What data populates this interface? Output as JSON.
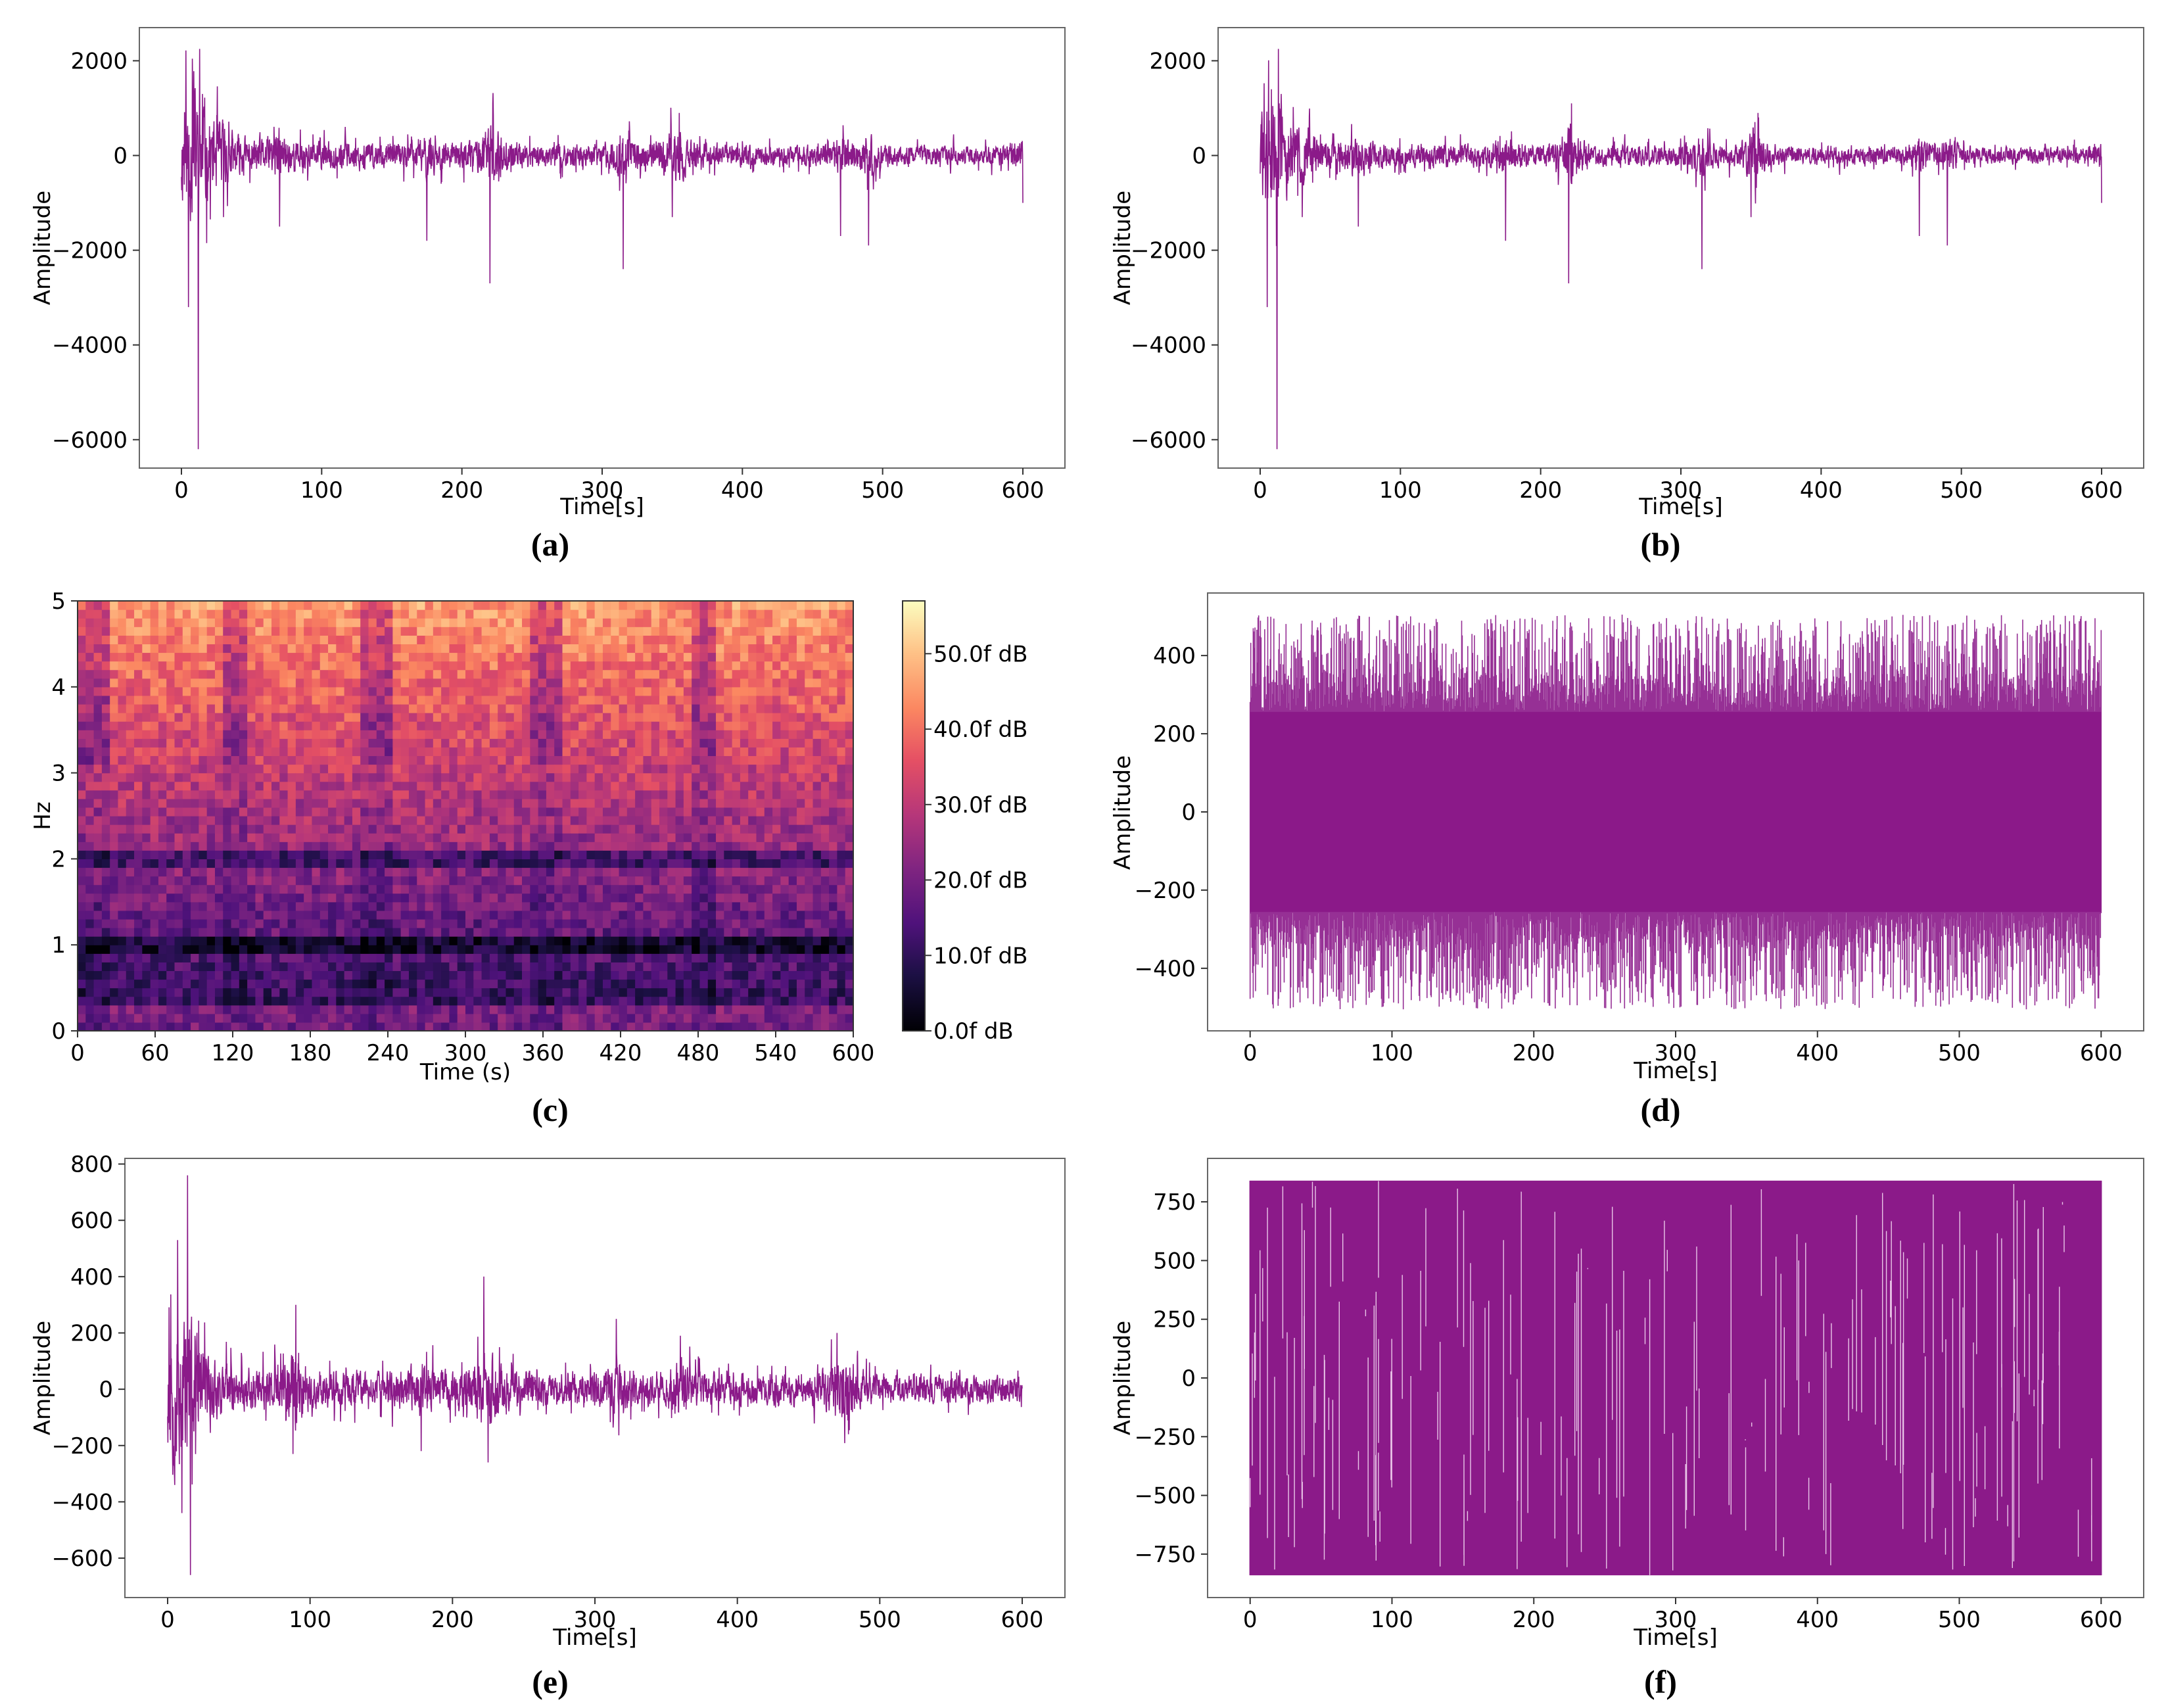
{
  "colors": {
    "signal": "#8b1a89",
    "frame": "#666666",
    "text": "#000000"
  },
  "chart_data": [
    {
      "id": "a",
      "type": "line",
      "panel_label": "(a)",
      "xlabel": "Time[s]",
      "ylabel": "Amplitude",
      "xlim": [
        -30,
        630
      ],
      "ylim": [
        -6600,
        2700
      ],
      "xticks": [
        0,
        100,
        200,
        300,
        400,
        500,
        600
      ],
      "yticks": [
        2000,
        0,
        -2000,
        -4000,
        -6000
      ],
      "ytick_labels": [
        "2000",
        "0",
        "−2000",
        "−4000",
        "−6000"
      ],
      "base_amp": 380,
      "decay": 0.4,
      "spikes": [
        [
          5,
          -3200
        ],
        [
          8,
          1400
        ],
        [
          12,
          -6200
        ],
        [
          13,
          2250
        ],
        [
          15,
          1300
        ],
        [
          30,
          -1300
        ],
        [
          70,
          -1500
        ],
        [
          175,
          -1800
        ],
        [
          220,
          -2700
        ],
        [
          222,
          1100
        ],
        [
          315,
          -2400
        ],
        [
          350,
          -1300
        ],
        [
          355,
          900
        ],
        [
          470,
          -1700
        ],
        [
          490,
          -1900
        ],
        [
          600,
          -1000
        ]
      ],
      "clip": null,
      "band": null
    },
    {
      "id": "b",
      "type": "line",
      "panel_label": "(b)",
      "xlabel": "Time[s]",
      "ylabel": "Amplitude",
      "xlim": [
        -30,
        630
      ],
      "ylim": [
        -6600,
        2700
      ],
      "xticks": [
        0,
        100,
        200,
        300,
        400,
        500,
        600
      ],
      "yticks": [
        2000,
        0,
        -2000,
        -4000,
        -6000
      ],
      "ytick_labels": [
        "2000",
        "0",
        "−2000",
        "−4000",
        "−6000"
      ],
      "base_amp": 330,
      "decay": 0.4,
      "spikes": [
        [
          5,
          -3200
        ],
        [
          8,
          1400
        ],
        [
          12,
          -6200
        ],
        [
          13,
          2250
        ],
        [
          15,
          1300
        ],
        [
          30,
          -1300
        ],
        [
          70,
          -1500
        ],
        [
          175,
          -1800
        ],
        [
          220,
          -2700
        ],
        [
          222,
          1100
        ],
        [
          315,
          -2400
        ],
        [
          350,
          -1300
        ],
        [
          355,
          900
        ],
        [
          470,
          -1700
        ],
        [
          490,
          -1900
        ],
        [
          600,
          -1000
        ]
      ],
      "clip": null,
      "band": null
    },
    {
      "id": "c",
      "type": "heatmap",
      "panel_label": "(c)",
      "xlabel": "Time (s)",
      "ylabel": "Hz",
      "xlim": [
        0,
        600
      ],
      "ylim": [
        0,
        5
      ],
      "xticks": [
        0,
        60,
        120,
        180,
        240,
        300,
        360,
        420,
        480,
        540,
        600
      ],
      "yticks": [
        0,
        1,
        2,
        3,
        4,
        5
      ],
      "colorbar": {
        "min": 0,
        "max": 57,
        "ticks": [
          0,
          10,
          20,
          30,
          40,
          50
        ],
        "labels": [
          "0.0f dB",
          "10.0f dB",
          "20.0f dB",
          "30.0f dB",
          "40.0f dB",
          "50.0f dB"
        ]
      },
      "time_bins": 96,
      "freq_bins": 50,
      "dark_bands_hz": [
        1.0,
        2.0
      ],
      "event_columns_s": [
        12,
        123,
        231,
        363,
        483
      ]
    },
    {
      "id": "d",
      "type": "line",
      "panel_label": "(d)",
      "xlabel": "Time[s]",
      "ylabel": "Amplitude",
      "xlim": [
        -30,
        630
      ],
      "ylim": [
        -560,
        560
      ],
      "xticks": [
        0,
        100,
        200,
        300,
        400,
        500,
        600
      ],
      "yticks": [
        400,
        200,
        0,
        -200,
        -400
      ],
      "ytick_labels": [
        "400",
        "200",
        "0",
        "−200",
        "−400"
      ],
      "band": 256,
      "peak": 505
    },
    {
      "id": "e",
      "type": "line",
      "panel_label": "(e)",
      "xlabel": "Time[s]",
      "ylabel": "Amplitude",
      "xlim": [
        -30,
        630
      ],
      "ylim": [
        -740,
        820
      ],
      "xticks": [
        0,
        100,
        200,
        300,
        400,
        500,
        600
      ],
      "yticks": [
        800,
        600,
        400,
        200,
        0,
        -200,
        -400,
        -600
      ],
      "ytick_labels": [
        "800",
        "600",
        "400",
        "200",
        "0",
        "−200",
        "−400",
        "−600"
      ],
      "base_amp": 85,
      "decay": 0.3,
      "spikes": [
        [
          5,
          -340
        ],
        [
          7,
          530
        ],
        [
          10,
          -440
        ],
        [
          14,
          760
        ],
        [
          16,
          -660
        ],
        [
          90,
          300
        ],
        [
          88,
          -230
        ],
        [
          178,
          -220
        ],
        [
          222,
          400
        ],
        [
          225,
          -260
        ],
        [
          315,
          250
        ],
        [
          360,
          190
        ],
        [
          470,
          200
        ],
        [
          478,
          -160
        ]
      ],
      "clip": null,
      "band": null
    },
    {
      "id": "f",
      "type": "line",
      "panel_label": "(f)",
      "xlabel": "Time[s]",
      "ylabel": "Amplitude",
      "xlim": [
        -30,
        630
      ],
      "ylim": [
        -935,
        935
      ],
      "xticks": [
        0,
        100,
        200,
        300,
        400,
        500,
        600
      ],
      "yticks": [
        750,
        500,
        250,
        0,
        -250,
        -500,
        -750
      ],
      "ytick_labels": [
        "750",
        "500",
        "250",
        "0",
        "−250",
        "−500",
        "−750"
      ],
      "clip": 840
    }
  ]
}
